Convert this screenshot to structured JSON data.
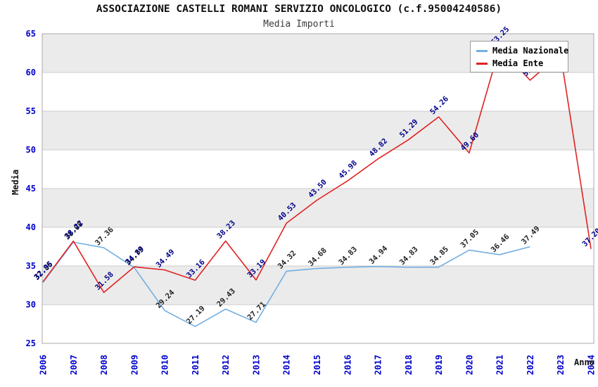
{
  "header": {
    "title": "ASSOCIAZIONE CASTELLI ROMANI SERVIZIO ONCOLOGICO (c.f.95004240586)",
    "subtitle": "Media Importi"
  },
  "legend": {
    "items": [
      {
        "label": "Media Nazionale",
        "color": "#74aee3"
      },
      {
        "label": "Media Ente",
        "color": "#e02222"
      }
    ]
  },
  "axes": {
    "y_label": "Media",
    "x_label": "Anno",
    "y_ticks": [
      25,
      30,
      35,
      40,
      45,
      50,
      55,
      60,
      65
    ],
    "x_ticks": [
      2006,
      2007,
      2008,
      2009,
      2010,
      2011,
      2012,
      2013,
      2014,
      2015,
      2016,
      2017,
      2018,
      2019,
      2020,
      2021,
      2022,
      2023,
      2024
    ],
    "tick_color": "#0000cc"
  },
  "style": {
    "band_color": "#ebebeb",
    "grid_color": "#cccccc",
    "border_color": "#aaaaaa"
  },
  "chart_data": {
    "type": "line",
    "title": "Media Importi",
    "xlabel": "Anno",
    "ylabel": "Media",
    "ylim": [
      25,
      65
    ],
    "xlim": [
      2006,
      2024
    ],
    "legend_position": "top-right",
    "grid": "horizontal-bands",
    "series": [
      {
        "name": "Media Nazionale",
        "color": "#74aee3",
        "label_color": "#222222",
        "points": [
          {
            "year": 2006,
            "value": 32.86,
            "label": "32.86"
          },
          {
            "year": 2007,
            "value": 38.08,
            "label": "38.08"
          },
          {
            "year": 2008,
            "value": 37.36,
            "label": "37.36"
          },
          {
            "year": 2009,
            "value": 34.79,
            "label": "34.79"
          },
          {
            "year": 2010,
            "value": 29.24,
            "label": "29.24"
          },
          {
            "year": 2011,
            "value": 27.19,
            "label": "27.19"
          },
          {
            "year": 2012,
            "value": 29.43,
            "label": "29.43"
          },
          {
            "year": 2013,
            "value": 27.71,
            "label": "27.71"
          },
          {
            "year": 2014,
            "value": 34.32,
            "label": "34.32"
          },
          {
            "year": 2015,
            "value": 34.68,
            "label": "34.68"
          },
          {
            "year": 2016,
            "value": 34.83,
            "label": "34.83"
          },
          {
            "year": 2017,
            "value": 34.94,
            "label": "34.94"
          },
          {
            "year": 2018,
            "value": 34.83,
            "label": "34.83"
          },
          {
            "year": 2019,
            "value": 34.85,
            "label": "34.85"
          },
          {
            "year": 2020,
            "value": 37.05,
            "label": "37.05"
          },
          {
            "year": 2021,
            "value": 36.46,
            "label": "36.46"
          },
          {
            "year": 2022,
            "value": 37.49,
            "label": "37.49"
          }
        ]
      },
      {
        "name": "Media Ente",
        "color": "#e02222",
        "label_color": "#00008b",
        "points": [
          {
            "year": 2006,
            "value": 32.95,
            "label": "32.95"
          },
          {
            "year": 2007,
            "value": 38.22,
            "label": "38.22"
          },
          {
            "year": 2008,
            "value": 31.58,
            "label": "31.58"
          },
          {
            "year": 2009,
            "value": 34.89,
            "label": "34.89"
          },
          {
            "year": 2010,
            "value": 34.49,
            "label": "34.49"
          },
          {
            "year": 2011,
            "value": 33.16,
            "label": "33.16"
          },
          {
            "year": 2012,
            "value": 38.23,
            "label": "38.23"
          },
          {
            "year": 2013,
            "value": 33.19,
            "label": "33.19"
          },
          {
            "year": 2014,
            "value": 40.53,
            "label": "40.53"
          },
          {
            "year": 2015,
            "value": 43.5,
            "label": "43.50"
          },
          {
            "year": 2016,
            "value": 45.98,
            "label": "45.98"
          },
          {
            "year": 2017,
            "value": 48.82,
            "label": "48.82"
          },
          {
            "year": 2018,
            "value": 51.29,
            "label": "51.29"
          },
          {
            "year": 2019,
            "value": 54.26,
            "label": "54.26"
          },
          {
            "year": 2020,
            "value": 49.6,
            "label": "49.60"
          },
          {
            "year": 2021,
            "value": 63.25,
            "label": "63.25"
          },
          {
            "year": 2022,
            "value": 59.0,
            "label": "59.0"
          },
          {
            "year": 2023,
            "value": 62.4,
            "label": ""
          },
          {
            "year": 2024,
            "value": 37.2,
            "label": "37.20"
          }
        ]
      }
    ]
  }
}
